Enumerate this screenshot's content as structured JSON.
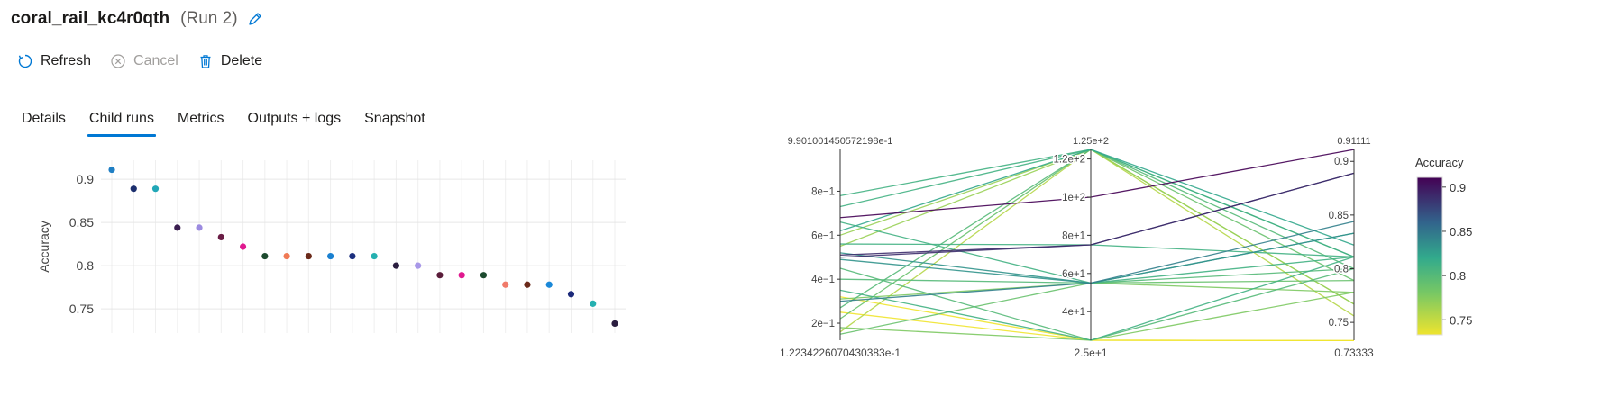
{
  "header": {
    "run_name": "coral_rail_kc4r0qth",
    "run_number": "(Run 2)"
  },
  "toolbar": {
    "refresh_label": "Refresh",
    "cancel_label": "Cancel",
    "delete_label": "Delete"
  },
  "tabs": [
    {
      "label": "Details"
    },
    {
      "label": "Child runs",
      "active": true
    },
    {
      "label": "Metrics"
    },
    {
      "label": "Outputs + logs"
    },
    {
      "label": "Snapshot"
    }
  ],
  "colors": {
    "accent": "#0078d4",
    "disabled": "#a19f9d"
  },
  "chart_data": [
    {
      "type": "scatter",
      "title": "",
      "ylabel": "Accuracy",
      "xlabel": "",
      "ylim": [
        0.722,
        0.922
      ],
      "yticks": [
        "0.75",
        "0.8",
        "0.85",
        "0.9"
      ],
      "ytick_values": [
        0.75,
        0.8,
        0.85,
        0.9
      ],
      "grid": true,
      "points": [
        {
          "x": 1,
          "y": 0.911,
          "color": "#1f7fc4"
        },
        {
          "x": 2,
          "y": 0.889,
          "color": "#1c2f6e"
        },
        {
          "x": 3,
          "y": 0.889,
          "color": "#21a7b7"
        },
        {
          "x": 4,
          "y": 0.844,
          "color": "#3a1d4f"
        },
        {
          "x": 5,
          "y": 0.844,
          "color": "#9c8be0"
        },
        {
          "x": 6,
          "y": 0.833,
          "color": "#6a1d45"
        },
        {
          "x": 7,
          "y": 0.822,
          "color": "#e0198f"
        },
        {
          "x": 8,
          "y": 0.811,
          "color": "#1c4a2e"
        },
        {
          "x": 9,
          "y": 0.811,
          "color": "#f07a55"
        },
        {
          "x": 10,
          "y": 0.811,
          "color": "#6b2a1a"
        },
        {
          "x": 11,
          "y": 0.811,
          "color": "#1a80d0"
        },
        {
          "x": 12,
          "y": 0.811,
          "color": "#1c2f7e"
        },
        {
          "x": 13,
          "y": 0.811,
          "color": "#25b0b0"
        },
        {
          "x": 14,
          "y": 0.8,
          "color": "#2a1d3f"
        },
        {
          "x": 15,
          "y": 0.8,
          "color": "#a898e8"
        },
        {
          "x": 16,
          "y": 0.789,
          "color": "#5a1d3a"
        },
        {
          "x": 17,
          "y": 0.789,
          "color": "#e0198f"
        },
        {
          "x": 18,
          "y": 0.789,
          "color": "#1c4a2e"
        },
        {
          "x": 19,
          "y": 0.778,
          "color": "#f07a6a"
        },
        {
          "x": 20,
          "y": 0.778,
          "color": "#6b2a1a"
        },
        {
          "x": 21,
          "y": 0.778,
          "color": "#1a88d8"
        },
        {
          "x": 22,
          "y": 0.767,
          "color": "#1c2a7a"
        },
        {
          "x": 23,
          "y": 0.756,
          "color": "#25b0b0"
        },
        {
          "x": 24,
          "y": 0.733,
          "color": "#2a1d3f"
        }
      ]
    },
    {
      "type": "parallel_coordinates",
      "title": "",
      "colorbar_label": "Accuracy",
      "colorbar_ticks": [
        "0.75",
        "0.8",
        "0.85",
        "0.9"
      ],
      "colorbar_tick_values": [
        0.75,
        0.8,
        0.85,
        0.9
      ],
      "axes": [
        {
          "min_label": "1.2234226070430383e-1",
          "max_label": "9.901001450572198e-1",
          "range": [
            0.12234226070430383,
            0.9901001450572198
          ],
          "ticks": [
            "2e−1",
            "4e−1",
            "6e−1",
            "8e−1"
          ],
          "tick_values": [
            0.2,
            0.4,
            0.6,
            0.8
          ]
        },
        {
          "min_label": "2.5e+1",
          "max_label": "1.25e+2",
          "range": [
            25,
            125
          ],
          "ticks": [
            "4e+1",
            "6e+1",
            "8e+1",
            "1e+2",
            "1.2e+2"
          ],
          "tick_values": [
            40,
            60,
            80,
            100,
            120
          ]
        },
        {
          "min_label": "0.73333",
          "max_label": "0.91111",
          "range": [
            0.73333,
            0.91111
          ],
          "ticks": [
            "0.75",
            "0.8",
            "0.85",
            "0.9"
          ],
          "tick_values": [
            0.75,
            0.8,
            0.85,
            0.9
          ]
        }
      ],
      "lines": [
        [
          0.68,
          100,
          0.911
        ],
        [
          0.51,
          75,
          0.889
        ],
        [
          0.5,
          75,
          0.889
        ],
        [
          0.78,
          125,
          0.811
        ],
        [
          0.73,
          125,
          0.811
        ],
        [
          0.62,
          125,
          0.822
        ],
        [
          0.52,
          55,
          0.833
        ],
        [
          0.49,
          55,
          0.833
        ],
        [
          0.3,
          55,
          0.844
        ],
        [
          0.66,
          55,
          0.811
        ],
        [
          0.56,
          75,
          0.811
        ],
        [
          0.4,
          55,
          0.8
        ],
        [
          0.27,
          125,
          0.8
        ],
        [
          0.22,
          125,
          0.789
        ],
        [
          0.15,
          55,
          0.789
        ],
        [
          0.35,
          25,
          0.811
        ],
        [
          0.45,
          25,
          0.8
        ],
        [
          0.31,
          55,
          0.778
        ],
        [
          0.18,
          25,
          0.778
        ],
        [
          0.16,
          125,
          0.756
        ],
        [
          0.55,
          125,
          0.767
        ],
        [
          0.6,
          125,
          0.767
        ],
        [
          0.32,
          25,
          0.733
        ],
        [
          0.25,
          25,
          0.733
        ]
      ]
    }
  ]
}
